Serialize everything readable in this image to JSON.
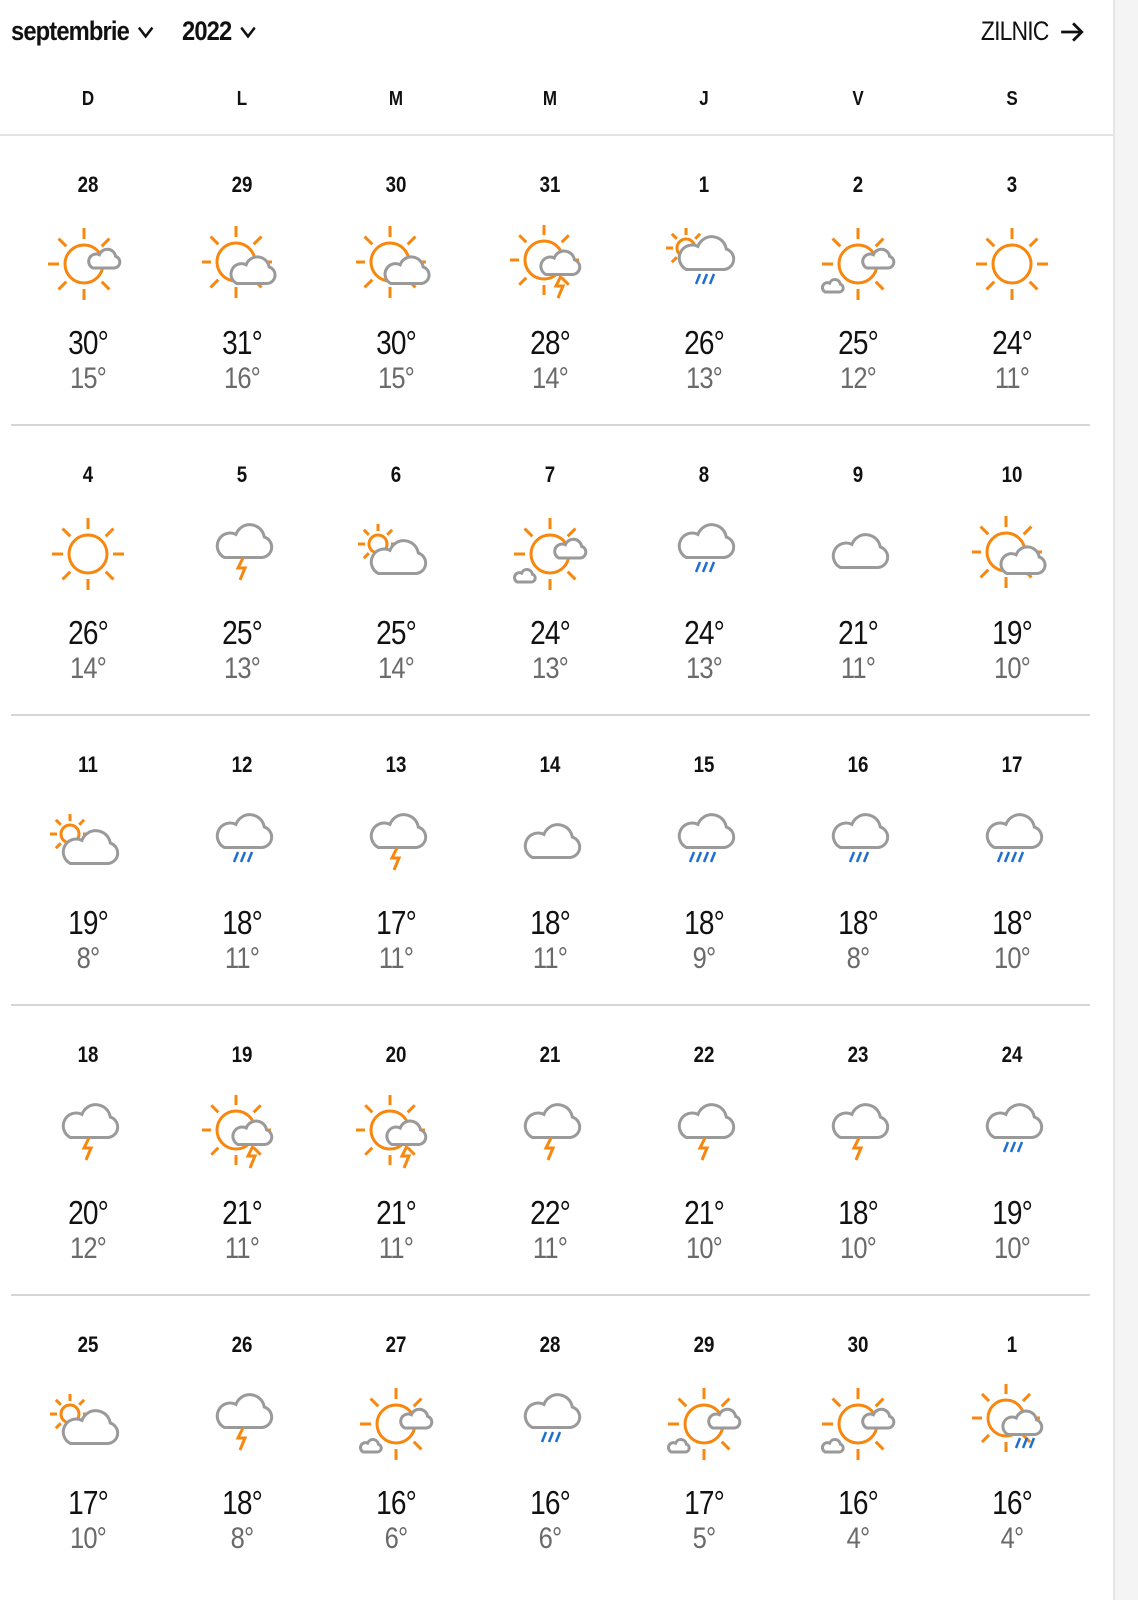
{
  "header": {
    "month": "septembrie",
    "year": "2022",
    "daily_link": "ZILNIC"
  },
  "weekdays": [
    "D",
    "L",
    "M",
    "M",
    "J",
    "V",
    "S"
  ],
  "colors": {
    "sun": "#f7870e",
    "cloud": "#9a9a9a",
    "rain": "#1f6fd1",
    "bolt": "#f7870e",
    "low_temp": "#6a6a6a"
  },
  "weeks": [
    [
      {
        "date": "28",
        "icon": "sun-small-cloud",
        "high": "30°",
        "low": "15°"
      },
      {
        "date": "29",
        "icon": "sun-cloud",
        "high": "31°",
        "low": "16°"
      },
      {
        "date": "30",
        "icon": "sun-cloud",
        "high": "30°",
        "low": "15°"
      },
      {
        "date": "31",
        "icon": "sun-cloud-thunder",
        "high": "28°",
        "low": "14°"
      },
      {
        "date": "1",
        "icon": "cloud-sun-rain",
        "high": "26°",
        "low": "13°"
      },
      {
        "date": "2",
        "icon": "sun-two-clouds",
        "high": "25°",
        "low": "12°"
      },
      {
        "date": "3",
        "icon": "sun",
        "high": "24°",
        "low": "11°"
      }
    ],
    [
      {
        "date": "4",
        "icon": "sun",
        "high": "26°",
        "low": "14°"
      },
      {
        "date": "5",
        "icon": "cloud-thunder",
        "high": "25°",
        "low": "13°"
      },
      {
        "date": "6",
        "icon": "cloud-small-sun",
        "high": "25°",
        "low": "14°"
      },
      {
        "date": "7",
        "icon": "sun-two-clouds",
        "high": "24°",
        "low": "13°"
      },
      {
        "date": "8",
        "icon": "cloud-rain",
        "high": "24°",
        "low": "13°"
      },
      {
        "date": "9",
        "icon": "cloud",
        "high": "21°",
        "low": "11°"
      },
      {
        "date": "10",
        "icon": "sun-cloud",
        "high": "19°",
        "low": "10°"
      }
    ],
    [
      {
        "date": "11",
        "icon": "cloud-small-sun",
        "high": "19°",
        "low": "8°"
      },
      {
        "date": "12",
        "icon": "cloud-rain",
        "high": "18°",
        "low": "11°"
      },
      {
        "date": "13",
        "icon": "cloud-thunder",
        "high": "17°",
        "low": "11°"
      },
      {
        "date": "14",
        "icon": "cloud",
        "high": "18°",
        "low": "11°"
      },
      {
        "date": "15",
        "icon": "cloud-heavy-rain",
        "high": "18°",
        "low": "9°"
      },
      {
        "date": "16",
        "icon": "cloud-rain",
        "high": "18°",
        "low": "8°"
      },
      {
        "date": "17",
        "icon": "cloud-heavy-rain",
        "high": "18°",
        "low": "10°"
      }
    ],
    [
      {
        "date": "18",
        "icon": "cloud-thunder",
        "high": "20°",
        "low": "12°"
      },
      {
        "date": "19",
        "icon": "sun-cloud-thunder",
        "high": "21°",
        "low": "11°"
      },
      {
        "date": "20",
        "icon": "sun-cloud-thunder",
        "high": "21°",
        "low": "11°"
      },
      {
        "date": "21",
        "icon": "cloud-thunder",
        "high": "22°",
        "low": "11°"
      },
      {
        "date": "22",
        "icon": "cloud-thunder",
        "high": "21°",
        "low": "10°"
      },
      {
        "date": "23",
        "icon": "cloud-thunder",
        "high": "18°",
        "low": "10°"
      },
      {
        "date": "24",
        "icon": "cloud-rain",
        "high": "19°",
        "low": "10°"
      }
    ],
    [
      {
        "date": "25",
        "icon": "cloud-small-sun",
        "high": "17°",
        "low": "10°"
      },
      {
        "date": "26",
        "icon": "cloud-thunder",
        "high": "18°",
        "low": "8°"
      },
      {
        "date": "27",
        "icon": "sun-two-clouds",
        "high": "16°",
        "low": "6°"
      },
      {
        "date": "28",
        "icon": "cloud-rain",
        "high": "16°",
        "low": "6°"
      },
      {
        "date": "29",
        "icon": "sun-two-clouds",
        "high": "17°",
        "low": "5°"
      },
      {
        "date": "30",
        "icon": "sun-two-clouds",
        "high": "16°",
        "low": "4°"
      },
      {
        "date": "1",
        "icon": "sun-cloud-rain",
        "high": "16°",
        "low": "4°"
      }
    ]
  ]
}
